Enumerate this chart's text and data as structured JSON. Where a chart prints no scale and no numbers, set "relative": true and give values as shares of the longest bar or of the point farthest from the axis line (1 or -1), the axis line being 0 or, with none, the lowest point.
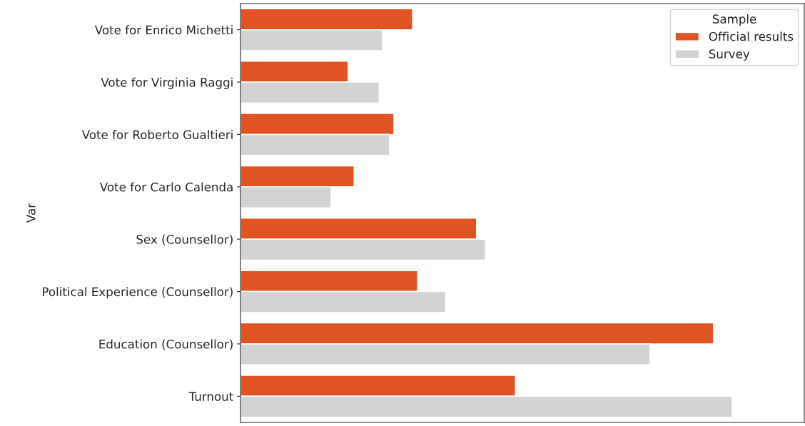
{
  "chart_data": {
    "type": "bar",
    "orientation": "horizontal",
    "relative": true,
    "ylabel": "Var",
    "legend_title": "Sample",
    "legend": "top right",
    "grid": false,
    "categories": [
      "Vote for Enrico Michetti",
      "Vote for Virginia Raggi",
      "Vote for Roberto Gualtieri",
      "Vote for Carlo Calenda",
      "Sex (Counsellor)",
      "Political Experience (Counsellor)",
      "Education (Counsellor)",
      "Turnout"
    ],
    "series": [
      {
        "name": "Official results",
        "color": "#e05424",
        "values": [
          0.35,
          0.219,
          0.312,
          0.231,
          0.48,
          0.36,
          0.962,
          0.559
        ]
      },
      {
        "name": "Survey",
        "color": "#d3d3d3",
        "values": [
          0.289,
          0.282,
          0.303,
          0.184,
          0.498,
          0.417,
          0.833,
          1.0
        ]
      }
    ]
  }
}
